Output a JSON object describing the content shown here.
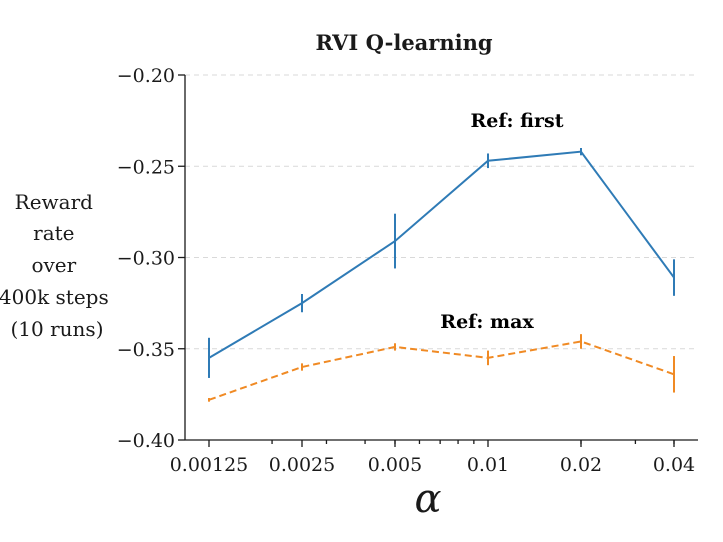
{
  "chart_data": {
    "type": "line",
    "title": "RVI Q-learning",
    "xlabel": "α",
    "ylabel_lines": [
      "Reward",
      "rate",
      "over",
      "400k steps",
      "(10 runs)"
    ],
    "x_scale": "log",
    "categories": [
      "0.00125",
      "0.0025",
      "0.005",
      "0.01",
      "0.02",
      "0.04"
    ],
    "ylim": [
      -0.4,
      -0.2
    ],
    "yticks": [
      "−0.20",
      "−0.25",
      "−0.30",
      "−0.35",
      "−0.40"
    ],
    "grid": "horizontal-dashed",
    "series": [
      {
        "name": "Ref: first",
        "color": "#2f7bb6",
        "style": "solid",
        "values": [
          -0.355,
          -0.325,
          -0.291,
          -0.247,
          -0.242,
          -0.311
        ],
        "error": [
          0.011,
          0.005,
          0.015,
          0.004,
          0.002,
          0.01
        ]
      },
      {
        "name": "Ref: max",
        "color": "#f08a24",
        "style": "dashed",
        "values": [
          -0.378,
          -0.36,
          -0.349,
          -0.355,
          -0.346,
          -0.364
        ],
        "error": [
          0.001,
          0.002,
          0.002,
          0.004,
          0.004,
          0.01
        ]
      }
    ]
  }
}
